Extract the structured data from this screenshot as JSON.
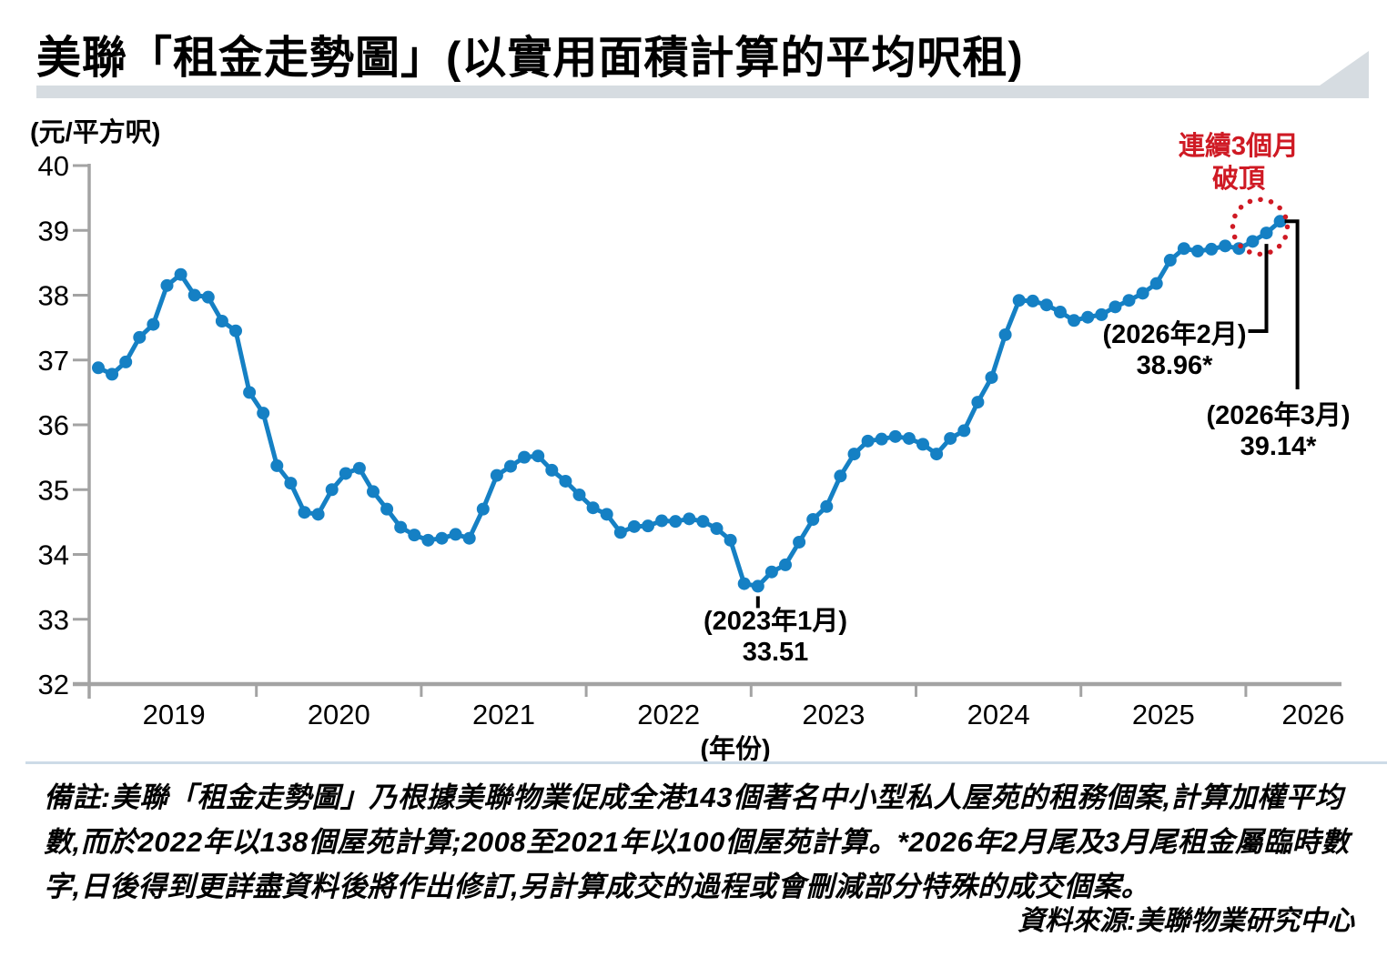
{
  "title": "美聯「租金走勢圖」(以實用面積計算的平均呎租)",
  "y_axis_unit": "(元/平方呎)",
  "x_axis_unit": "(年份)",
  "annotations": {
    "record": {
      "line1": "連續3個月",
      "line2": "破頂"
    },
    "min": {
      "label": "(2023年1月)",
      "value": "33.51"
    },
    "feb2026": {
      "label": "(2026年2月)",
      "value": "38.96*"
    },
    "mar2026": {
      "label": "(2026年3月)",
      "value": "39.14*"
    }
  },
  "notes": "備註:美聯「租金走勢圖」乃根據美聯物業促成全港143個著名中小型私人屋苑的租務個案,計算加權平均數,而於2022年以138個屋苑計算;2008至2021年以100個屋苑計算。*2026年2月尾及3月尾租金屬臨時數字,日後得到更詳盡資料後將作出修訂,另計算成交的過程或會刪減部分特殊的成交個案。",
  "source": "資料來源:美聯物業研究中心",
  "colors": {
    "line": "#1580c4",
    "annotation_red": "#cf1a24",
    "axis_gray": "#a3a3a3",
    "swoosh_gray": "#d6dce1",
    "separator_blue": "#cddbe7",
    "callout_black": "#000000"
  },
  "chart_data": {
    "type": "line",
    "title": "美聯「租金走勢圖」(以實用面積計算的平均呎租)",
    "ylabel": "(元/平方呎)",
    "xlabel": "(年份)",
    "ylim": [
      32,
      40
    ],
    "grid": false,
    "x_start": "2019-01",
    "x_end": "2026-03",
    "frequency": "monthly",
    "y_ticks": [
      40,
      39,
      38,
      37,
      36,
      35,
      34,
      33,
      32
    ],
    "x_tick_labels": [
      "2019",
      "2020",
      "2021",
      "2022",
      "2023",
      "2024",
      "2025",
      "2026"
    ],
    "values": [
      36.88,
      36.78,
      36.97,
      37.35,
      37.55,
      38.15,
      38.32,
      38.0,
      37.97,
      37.6,
      37.45,
      36.5,
      36.18,
      35.37,
      35.1,
      34.65,
      34.62,
      35.0,
      35.25,
      35.33,
      34.97,
      34.7,
      34.42,
      34.3,
      34.22,
      34.25,
      34.31,
      34.25,
      34.7,
      35.22,
      35.36,
      35.5,
      35.52,
      35.3,
      35.13,
      34.92,
      34.72,
      34.62,
      34.34,
      34.43,
      34.44,
      34.52,
      34.51,
      34.55,
      34.51,
      34.4,
      34.22,
      33.55,
      33.51,
      33.73,
      33.84,
      34.19,
      34.54,
      34.74,
      35.21,
      35.55,
      35.75,
      35.78,
      35.82,
      35.79,
      35.7,
      35.55,
      35.79,
      35.91,
      36.35,
      36.73,
      37.39,
      37.92,
      37.91,
      37.85,
      37.74,
      37.61,
      37.66,
      37.7,
      37.82,
      37.92,
      38.03,
      38.18,
      38.54,
      38.72,
      38.68,
      38.71,
      38.76,
      38.72,
      38.83,
      38.96,
      39.14
    ],
    "highlighted_points": [
      {
        "month": "2023-01",
        "value": 33.51
      },
      {
        "month": "2026-02",
        "value": 38.96
      },
      {
        "month": "2026-03",
        "value": 39.14
      }
    ],
    "legend_position": "none"
  }
}
